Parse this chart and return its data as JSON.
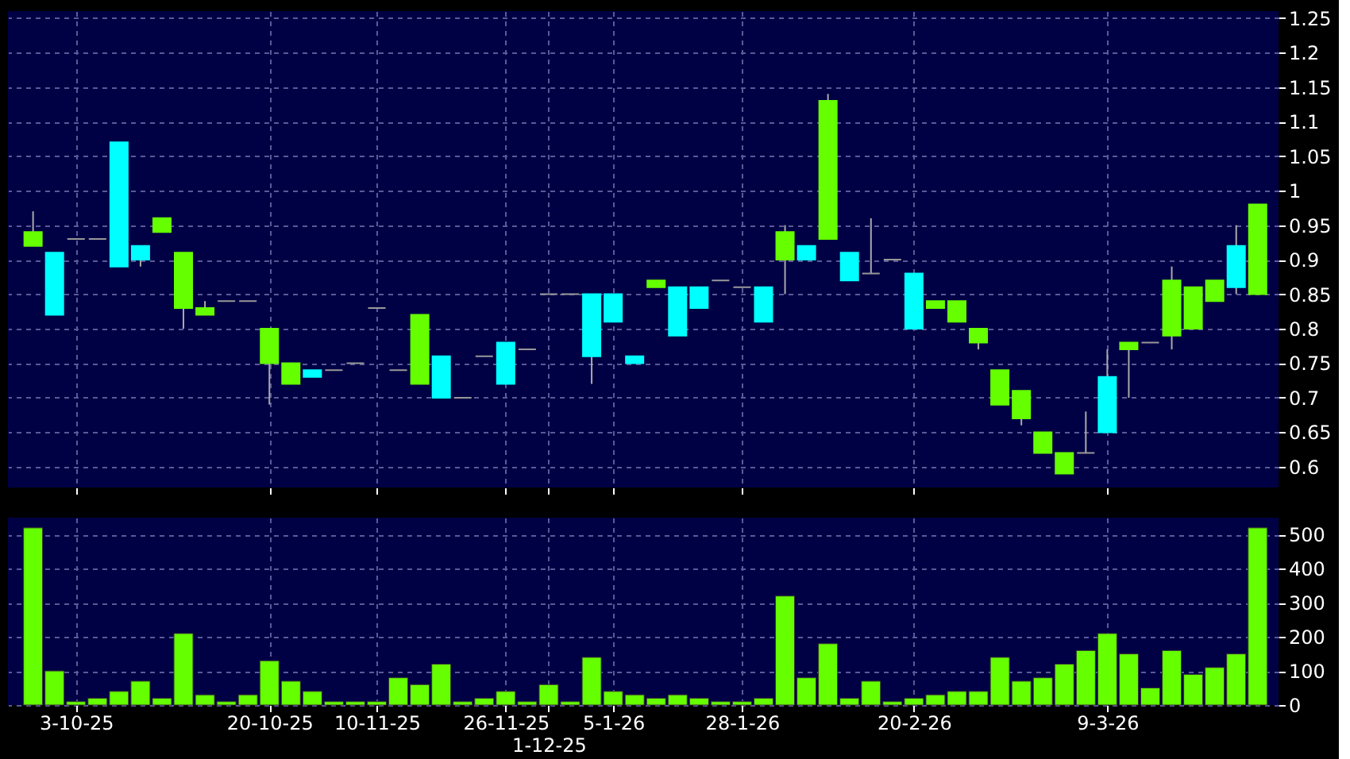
{
  "chart_data": [
    {
      "type": "candlestick",
      "categories": [
        null,
        null,
        "3-10-25",
        null,
        null,
        null,
        null,
        null,
        null,
        null,
        null,
        "20-10-25",
        null,
        null,
        null,
        null,
        "10-11-25",
        null,
        null,
        null,
        null,
        null,
        "26-11-25",
        null,
        "1-12-25",
        null,
        null,
        "5-1-26",
        null,
        null,
        null,
        null,
        null,
        "28-1-26",
        null,
        null,
        null,
        null,
        null,
        null,
        null,
        "20-2-26",
        null,
        null,
        null,
        null,
        null,
        null,
        null,
        null,
        "9-3-26",
        null,
        null,
        null,
        null,
        null,
        null,
        null
      ],
      "ohlc": [
        [
          0.92,
          0.97,
          0.92,
          0.94
        ],
        [
          0.91,
          0.91,
          0.82,
          0.82
        ],
        [
          0.93,
          0.93,
          0.93,
          0.93
        ],
        [
          0.93,
          0.93,
          0.93,
          0.93
        ],
        [
          1.07,
          1.07,
          0.89,
          0.89
        ],
        [
          0.92,
          0.92,
          0.89,
          0.9
        ],
        [
          0.94,
          0.96,
          0.94,
          0.96
        ],
        [
          0.83,
          0.91,
          0.8,
          0.91
        ],
        [
          0.82,
          0.84,
          0.82,
          0.83
        ],
        [
          0.84,
          0.84,
          0.84,
          0.84
        ],
        [
          0.84,
          0.84,
          0.84,
          0.84
        ],
        [
          0.75,
          0.8,
          0.69,
          0.8
        ],
        [
          0.72,
          0.75,
          0.72,
          0.75
        ],
        [
          0.74,
          0.74,
          0.73,
          0.73
        ],
        [
          0.74,
          0.74,
          0.74,
          0.74
        ],
        [
          0.75,
          0.75,
          0.75,
          0.75
        ],
        [
          0.83,
          0.83,
          0.83,
          0.83
        ],
        [
          0.74,
          0.74,
          0.74,
          0.74
        ],
        [
          0.72,
          0.82,
          0.72,
          0.82
        ],
        [
          0.76,
          0.76,
          0.7,
          0.7
        ],
        [
          0.7,
          0.7,
          0.7,
          0.7
        ],
        [
          0.76,
          0.76,
          0.76,
          0.76
        ],
        [
          0.78,
          0.78,
          0.72,
          0.72
        ],
        [
          0.77,
          0.77,
          0.77,
          0.77
        ],
        [
          0.85,
          0.85,
          0.85,
          0.85
        ],
        [
          0.85,
          0.85,
          0.85,
          0.85
        ],
        [
          0.85,
          0.85,
          0.72,
          0.76
        ],
        [
          0.85,
          0.85,
          0.81,
          0.81
        ],
        [
          0.76,
          0.76,
          0.75,
          0.75
        ],
        [
          0.86,
          0.87,
          0.86,
          0.87
        ],
        [
          0.86,
          0.86,
          0.79,
          0.79
        ],
        [
          0.86,
          0.86,
          0.83,
          0.83
        ],
        [
          0.87,
          0.87,
          0.87,
          0.87
        ],
        [
          0.86,
          0.86,
          0.86,
          0.86
        ],
        [
          0.86,
          0.86,
          0.81,
          0.81
        ],
        [
          0.9,
          0.95,
          0.85,
          0.94
        ],
        [
          0.92,
          0.92,
          0.9,
          0.9
        ],
        [
          0.93,
          1.14,
          0.93,
          1.13
        ],
        [
          0.91,
          0.91,
          0.87,
          0.87
        ],
        [
          0.88,
          0.96,
          0.88,
          0.88
        ],
        [
          0.9,
          0.9,
          0.9,
          0.9
        ],
        [
          0.88,
          0.88,
          0.8,
          0.8
        ],
        [
          0.83,
          0.84,
          0.83,
          0.84
        ],
        [
          0.81,
          0.84,
          0.81,
          0.84
        ],
        [
          0.78,
          0.8,
          0.77,
          0.8
        ],
        [
          0.69,
          0.74,
          0.69,
          0.74
        ],
        [
          0.67,
          0.71,
          0.66,
          0.71
        ],
        [
          0.62,
          0.65,
          0.62,
          0.65
        ],
        [
          0.59,
          0.62,
          0.59,
          0.62
        ],
        [
          0.62,
          0.68,
          0.62,
          0.62
        ],
        [
          0.73,
          0.77,
          0.65,
          0.65
        ],
        [
          0.77,
          0.78,
          0.7,
          0.78
        ],
        [
          0.78,
          0.78,
          0.78,
          0.78
        ],
        [
          0.79,
          0.89,
          0.77,
          0.87
        ],
        [
          0.8,
          0.86,
          0.8,
          0.86
        ],
        [
          0.84,
          0.87,
          0.84,
          0.87
        ],
        [
          0.92,
          0.95,
          0.85,
          0.86
        ],
        [
          0.85,
          0.98,
          0.85,
          0.98
        ]
      ],
      "colors": [
        "#66ff00",
        "#00ffff",
        "#999999",
        "#999999",
        "#00ffff",
        "#00ffff",
        "#66ff00",
        "#66ff00",
        "#66ff00",
        "#999999",
        "#999999",
        "#66ff00",
        "#66ff00",
        "#00ffff",
        "#999999",
        "#999999",
        "#999999",
        "#999999",
        "#66ff00",
        "#00ffff",
        "#999999",
        "#999999",
        "#00ffff",
        "#999999",
        "#999999",
        "#999999",
        "#00ffff",
        "#00ffff",
        "#00ffff",
        "#66ff00",
        "#00ffff",
        "#00ffff",
        "#999999",
        "#999999",
        "#00ffff",
        "#66ff00",
        "#00ffff",
        "#66ff00",
        "#00ffff",
        "#999999",
        "#999999",
        "#00ffff",
        "#66ff00",
        "#66ff00",
        "#66ff00",
        "#66ff00",
        "#66ff00",
        "#66ff00",
        "#66ff00",
        "#999999",
        "#00ffff",
        "#66ff00",
        "#999999",
        "#66ff00",
        "#66ff00",
        "#66ff00",
        "#00ffff",
        "#66ff00"
      ],
      "ylim": [
        0.57,
        1.26
      ],
      "yticks": [
        0.6,
        0.65,
        0.7,
        0.75,
        0.8,
        0.85,
        0.9,
        0.95,
        1,
        1.05,
        1.1,
        1.15,
        1.2,
        1.25
      ],
      "grid": true,
      "tick_labels": "y"
    },
    {
      "type": "bar",
      "categories": [
        null,
        null,
        "3-10-25",
        null,
        null,
        null,
        null,
        null,
        null,
        null,
        null,
        "20-10-25",
        null,
        null,
        null,
        null,
        "10-11-25",
        null,
        null,
        null,
        null,
        null,
        "26-11-25",
        null,
        "1-12-25",
        null,
        null,
        "5-1-26",
        null,
        null,
        null,
        null,
        null,
        "28-1-26",
        null,
        null,
        null,
        null,
        null,
        null,
        null,
        "20-2-26",
        null,
        null,
        null,
        null,
        null,
        null,
        null,
        null,
        "9-3-26",
        null,
        null,
        null,
        null,
        null,
        null,
        null
      ],
      "values": [
        520,
        100,
        10,
        20,
        40,
        70,
        20,
        210,
        30,
        10,
        30,
        130,
        70,
        40,
        10,
        10,
        10,
        80,
        60,
        120,
        10,
        20,
        40,
        10,
        60,
        10,
        140,
        40,
        30,
        20,
        30,
        20,
        10,
        10,
        20,
        320,
        80,
        180,
        20,
        70,
        10,
        20,
        30,
        40,
        40,
        140,
        70,
        80,
        120,
        160,
        210,
        150,
        50,
        160,
        90,
        110,
        150,
        520
      ],
      "color": "#66ff00",
      "ylim": [
        0,
        550
      ],
      "yticks": [
        0,
        100,
        200,
        300,
        400,
        500
      ],
      "grid": true
    }
  ]
}
